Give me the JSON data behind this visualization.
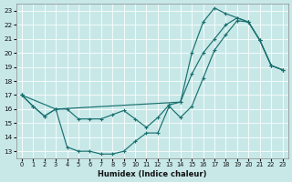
{
  "xlabel": "Humidex (Indice chaleur)",
  "bg_color": "#c8e8e8",
  "line_color": "#1a7070",
  "xlim": [
    -0.5,
    23.5
  ],
  "ylim": [
    12.5,
    23.5
  ],
  "yticks": [
    13,
    14,
    15,
    16,
    17,
    18,
    19,
    20,
    21,
    22,
    23
  ],
  "xticks": [
    0,
    1,
    2,
    3,
    4,
    5,
    6,
    7,
    8,
    9,
    10,
    11,
    12,
    13,
    14,
    15,
    16,
    17,
    18,
    19,
    20,
    21,
    22,
    23
  ],
  "curve1_x": [
    0,
    1,
    2,
    3,
    14,
    15,
    16,
    17,
    18,
    19,
    20,
    21,
    22,
    23
  ],
  "curve1_y": [
    17.0,
    16.2,
    15.5,
    16.0,
    16.5,
    20.0,
    22.2,
    23.2,
    22.8,
    22.5,
    22.2,
    20.9,
    19.1,
    18.8
  ],
  "curve2_x": [
    0,
    1,
    2,
    3,
    4,
    5,
    6,
    7,
    8,
    9,
    10,
    11,
    12,
    13,
    14,
    15,
    16,
    17,
    18,
    19,
    20,
    21,
    22,
    23
  ],
  "curve2_y": [
    17.0,
    16.2,
    15.5,
    16.0,
    13.3,
    13.0,
    13.0,
    12.8,
    12.8,
    13.0,
    13.7,
    14.3,
    14.3,
    16.2,
    15.4,
    16.2,
    18.2,
    20.2,
    21.3,
    22.3,
    22.2,
    20.9,
    19.1,
    18.8
  ],
  "curve3_x": [
    0,
    3,
    4,
    5,
    6,
    7,
    8,
    9,
    10,
    11,
    12,
    13,
    14,
    15,
    16,
    17,
    18,
    19,
    20,
    21,
    22,
    23
  ],
  "curve3_y": [
    17.0,
    16.0,
    16.0,
    15.3,
    15.3,
    15.3,
    15.6,
    15.9,
    15.3,
    14.7,
    15.4,
    16.3,
    16.5,
    18.5,
    20.0,
    21.0,
    22.0,
    22.5,
    22.2,
    20.9,
    19.1,
    18.8
  ]
}
